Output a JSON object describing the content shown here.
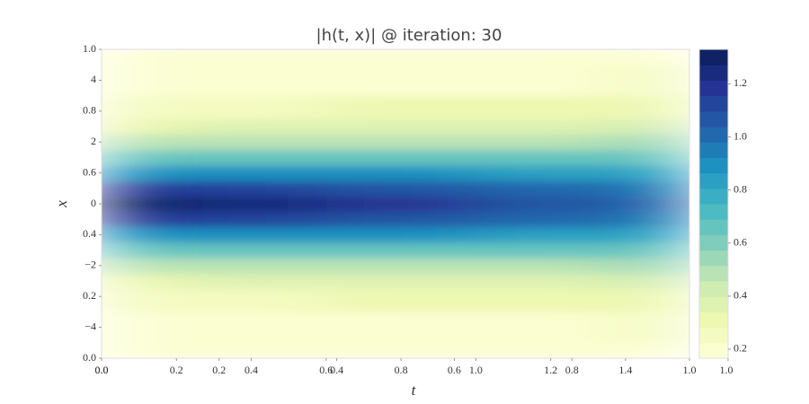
{
  "chart_data": {
    "type": "heatmap",
    "title": "|h(t, x)| @ iteration: 30",
    "xlabel": "t",
    "ylabel": "x",
    "x": [
      0,
      0.4,
      0.8,
      1.2,
      1.5708
    ],
    "y": [
      -5,
      -4,
      -3,
      -2.5,
      -2,
      -1.5,
      -1,
      -0.5,
      0,
      0.5,
      1,
      1.5,
      2,
      2.5,
      3,
      4,
      5
    ],
    "z": [
      [
        0.17,
        0.17,
        0.18,
        0.18,
        0.19
      ],
      [
        0.19,
        0.2,
        0.21,
        0.22,
        0.24
      ],
      [
        0.27,
        0.28,
        0.3,
        0.31,
        0.33
      ],
      [
        0.34,
        0.36,
        0.38,
        0.39,
        0.41
      ],
      [
        0.46,
        0.48,
        0.49,
        0.51,
        0.52
      ],
      [
        0.65,
        0.66,
        0.66,
        0.66,
        0.67
      ],
      [
        0.92,
        0.9,
        0.87,
        0.85,
        0.83
      ],
      [
        1.2,
        1.14,
        1.08,
        1.02,
        0.97
      ],
      [
        1.33,
        1.25,
        1.17,
        1.09,
        1.03
      ],
      [
        1.2,
        1.14,
        1.08,
        1.02,
        0.97
      ],
      [
        0.92,
        0.9,
        0.87,
        0.85,
        0.83
      ],
      [
        0.65,
        0.66,
        0.66,
        0.66,
        0.67
      ],
      [
        0.46,
        0.48,
        0.49,
        0.51,
        0.52
      ],
      [
        0.34,
        0.36,
        0.38,
        0.39,
        0.41
      ],
      [
        0.27,
        0.28,
        0.3,
        0.31,
        0.33
      ],
      [
        0.19,
        0.2,
        0.21,
        0.22,
        0.24
      ],
      [
        0.17,
        0.17,
        0.18,
        0.18,
        0.19
      ]
    ],
    "xlim": [
      0,
      1.5708
    ],
    "xticks": [
      {
        "value": 0,
        "label": "0.0"
      },
      0.2,
      0.4,
      0.6,
      0.8,
      {
        "value": 1,
        "label": "1.0"
      },
      1.2,
      1.4
    ],
    "x2lim": [
      0,
      1
    ],
    "x2ticks": [
      {
        "value": 0,
        "label": "0.0"
      },
      0.2,
      0.4,
      0.6,
      0.8,
      {
        "value": 1,
        "label": "1.0"
      }
    ],
    "ylim": [
      -5,
      5
    ],
    "yticks": [
      {
        "value": -4,
        "label": "−4"
      },
      {
        "value": -2,
        "label": "−2"
      },
      0,
      2,
      4
    ],
    "y2lim": [
      0,
      1
    ],
    "y2ticks": [
      {
        "value": 0,
        "label": "0.0"
      },
      0.2,
      0.4,
      0.6,
      0.8,
      {
        "value": 1,
        "label": "1.0"
      }
    ],
    "colormap": [
      "#ffffd9",
      "#edf8b1",
      "#c7e9b4",
      "#7fcdbb",
      "#41b6c4",
      "#1d91c0",
      "#225ea8",
      "#253494",
      "#081d58"
    ],
    "levels": 20,
    "clim": [
      0.166,
      1.33
    ],
    "cticks": [
      0.2,
      0.4,
      0.6,
      0.8,
      {
        "value": 1,
        "label": "1.0"
      },
      1.2
    ],
    "colorbar_xlim": [
      0,
      1
    ],
    "colorbar_xticks": [
      {
        "value": 1,
        "label": "1.0"
      }
    ]
  }
}
